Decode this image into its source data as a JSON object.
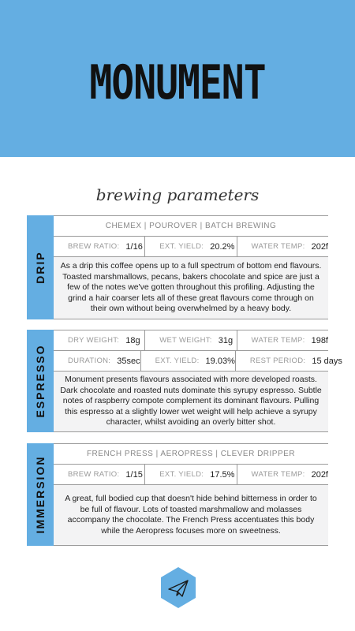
{
  "brand": "MONUMENT",
  "subtitle": "brewing parameters",
  "drip": {
    "label": "DRIP",
    "methods": "CHEMEX | POUROVER | BATCH BREWING",
    "params": [
      {
        "label": "BREW RATIO:",
        "value": "1/16"
      },
      {
        "label": "EXT. YIELD:",
        "value": "20.2%"
      },
      {
        "label": "WATER TEMP:",
        "value": "202f"
      }
    ],
    "description": "As a drip this coffee opens up to a full spectrum of bottom end flavours. Toasted marshmallows, pecans, bakers chocolate and spice are just a few of the notes we've gotten throughout this profiling. Adjusting the grind a hair coarser lets all of these great flavours come through on their own without being overwhelmed by a heavy body."
  },
  "espresso": {
    "label": "ESPRESSO",
    "params_row1": [
      {
        "label": "DRY WEIGHT:",
        "value": "18g"
      },
      {
        "label": "WET WEIGHT:",
        "value": "31g"
      },
      {
        "label": "WATER TEMP:",
        "value": "198f"
      }
    ],
    "params_row2": [
      {
        "label": "DURATION:",
        "value": "35sec"
      },
      {
        "label": "EXT. YIELD:",
        "value": "19.03%"
      },
      {
        "label": "REST PERIOD:",
        "value": "15 days"
      }
    ],
    "description": "Monument presents flavours associated with more developed roasts. Dark chocolate and roasted nuts dominate this syrupy espresso. Subtle notes of raspberry compote complement its dominant flavours. Pulling this espresso at a slightly lower wet weight will help achieve a syrupy character, whilst avoiding an overly bitter shot."
  },
  "immersion": {
    "label": "IMMERSION",
    "methods": "FRENCH PRESS | AEROPRESS | CLEVER DRIPPER",
    "params": [
      {
        "label": "BREW RATIO:",
        "value": "1/15"
      },
      {
        "label": "EXT. YIELD:",
        "value": "17.5%"
      },
      {
        "label": "WATER TEMP:",
        "value": "202f"
      }
    ],
    "description": "A great, full bodied cup that doesn't hide behind bitterness in order to be full of flavour. Lots of toasted marshmallow  and molasses accompany the chocolate. The French Press accentuates this body while the Aeropress focuses more on sweetness."
  },
  "logo_icon": "paper-plane-icon",
  "colors": {
    "accent": "#64aee2",
    "panel": "#f3f3f4",
    "rule": "#9a9a9a"
  }
}
